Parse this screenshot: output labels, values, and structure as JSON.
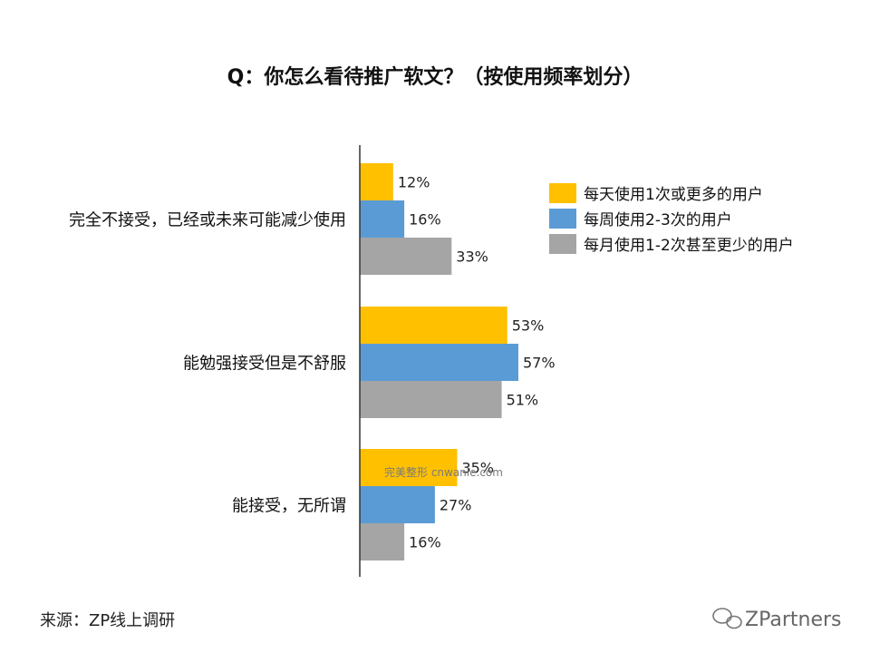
{
  "chart_data": {
    "type": "bar",
    "orientation": "horizontal",
    "title": "Q：你怎么看待推广软文？（按使用频率划分）",
    "categories": [
      "完全不接受，已经或未来可能减少使用",
      "能勉强接受但是不舒服",
      "能接受，无所谓"
    ],
    "series": [
      {
        "name": "每天使用1次或更多的用户",
        "color": "#FFC000",
        "values": [
          12,
          53,
          35
        ]
      },
      {
        "name": "每周使用2-3次的用户",
        "color": "#5B9BD5",
        "values": [
          16,
          57,
          27
        ]
      },
      {
        "name": "每月使用1-2次甚至更少的用户",
        "color": "#A5A5A5",
        "values": [
          33,
          51,
          16
        ]
      }
    ],
    "value_suffix": "%",
    "xlim": [
      0,
      100
    ],
    "grid": false,
    "legend_position": "right"
  },
  "source": "来源：ZP线上调研",
  "watermark": "完美整形 cnwanle.com",
  "brand": "ZPartners",
  "brand_icon": "wechat-icon"
}
